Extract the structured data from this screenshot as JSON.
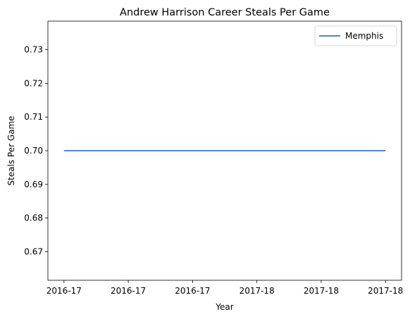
{
  "chart_data": {
    "type": "line",
    "title": "Andrew Harrison  Career Steals Per Game",
    "xlabel": "Year",
    "ylabel": "Steals Per Game",
    "categories": [
      "2016-17",
      "2016-17",
      "2016-17",
      "2017-18",
      "2017-18",
      "2017-18"
    ],
    "series": [
      {
        "name": "Memphis",
        "x": [
          0,
          5
        ],
        "values": [
          0.7,
          0.7
        ],
        "color": "#5b85b6"
      }
    ],
    "xlim": [
      -0.25,
      5.25
    ],
    "ylim": [
      0.6615,
      0.7385
    ],
    "yticks": [
      0.67,
      0.68,
      0.69,
      0.7,
      0.71,
      0.72,
      0.73
    ],
    "ytick_labels": [
      "0.67",
      "0.68",
      "0.69",
      "0.70",
      "0.71",
      "0.72",
      "0.73"
    ],
    "grid": false,
    "legend": "top-right"
  }
}
